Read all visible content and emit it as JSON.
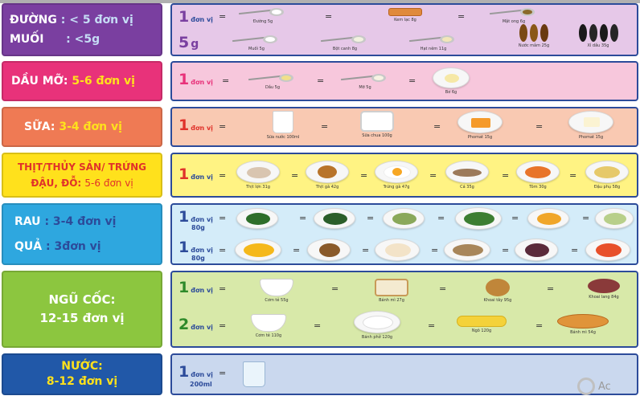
{
  "colors": {
    "navy": "#2c4b9a",
    "sugar_panel": "#7a3fa0",
    "sugar_right": "#e6c8e8",
    "fat_panel": "#e8327a",
    "fat_right": "#f7c7dc",
    "milk_panel": "#ef7a54",
    "milk_right": "#f9c9b2",
    "meat_panel": "#ffe11c",
    "meat_right": "#fff383",
    "veg_panel": "#2ea7df",
    "veg_right": "#d4ecf9",
    "grain_panel": "#8cc63f",
    "grain_right": "#d8e9a9",
    "water_panel": "#2158a8",
    "water_right": "#cad8ee"
  },
  "rows": {
    "sugar_salt": {
      "label_1": "ĐƯỜNG",
      "label_1_val": ": < 5 đơn vị",
      "label_2": "MUỐI",
      "label_2_val": ": <5g",
      "unit_1_num": "1",
      "unit_1_txt": "đơn vị",
      "unit_2_num": "5",
      "unit_2_txt": "g",
      "items_1": [
        "Đường 5g",
        "Kem lạc 8g",
        "Mật ong 6g"
      ],
      "items_2": [
        "Muối 5g",
        "Bột canh 8g",
        "Hạt nêm 11g",
        "Nước mắm 25g",
        "Xì dầu 35g"
      ]
    },
    "fat": {
      "label": "DẦU MỠ:",
      "label_val": "5-6 đơn vị",
      "unit_num": "1",
      "unit_txt": "đơn vị",
      "items": [
        "Dầu 5g",
        "Mỡ 5g",
        "Bơ 6g"
      ]
    },
    "milk": {
      "label": "SỮA:",
      "label_val": "3-4 đơn vị",
      "unit_num": "1",
      "unit_txt": "đơn vị",
      "items": [
        "Sữa nước 100ml",
        "Sữa chua 100g",
        "Phomat 15g",
        "Phomat 15g"
      ]
    },
    "meat": {
      "label_1": "THỊT/THỦY SẢN/ TRỨNG",
      "label_2": "ĐẬU, ĐỖ:",
      "label_2_val": "5-6 đơn vị",
      "unit_num": "1",
      "unit_txt": "đơn vị",
      "items": [
        "Thịt lợn 31g",
        "Thịt gà 42g",
        "Trứng gà 47g",
        "Cá 35g",
        "Tôm 30g",
        "Đậu phụ 58g"
      ]
    },
    "veg": {
      "label_1": "RAU",
      "label_1_val": ": 3-4 đơn vị",
      "label_2": "QUẢ",
      "label_2_val": ": 3đơn vị",
      "unit_num": "1",
      "unit_txt": "đơn vị",
      "unit_sub": "80g"
    },
    "grain": {
      "label_1": "NGŨ CỐC:",
      "label_2": "12-15 đơn vị",
      "unit_1_num": "1",
      "unit_1_txt": "đơn vị",
      "unit_2_num": "2",
      "unit_2_txt": "đơn vị",
      "items_1": [
        "Cơm tẻ 55g",
        "Bánh mì 27g",
        "Khoai tây 95g",
        "Khoai lang 84g"
      ],
      "items_2": [
        "Cơm tẻ 110g",
        "Bánh phở 120g",
        "Ngô 120g",
        "Bánh mì 54g"
      ]
    },
    "water": {
      "label_1": "NƯỚC:",
      "label_2": "8-12 đơn vị",
      "unit_num": "1",
      "unit_txt": "đơn vị",
      "unit_sub": "200ml"
    }
  },
  "equals": "=",
  "watermark": "Ac"
}
